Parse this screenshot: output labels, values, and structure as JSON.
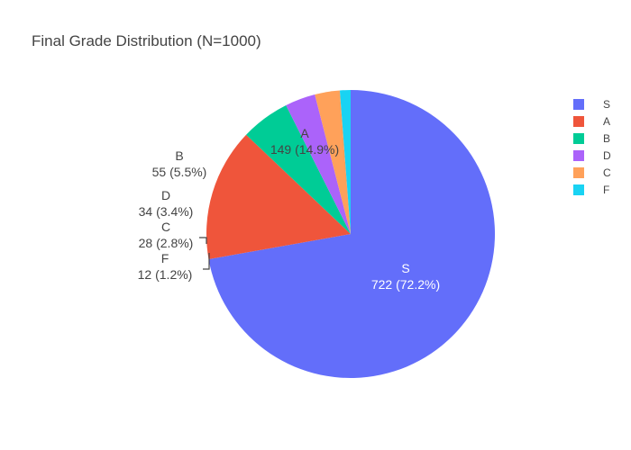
{
  "chart_data": {
    "type": "pie",
    "title": "Final Grade Distribution (N=1000)",
    "slices": [
      {
        "label": "S",
        "value": 722,
        "percent": "72.2%",
        "color": "#636efa",
        "text_color": "#ffffff"
      },
      {
        "label": "A",
        "value": 149,
        "percent": "14.9%",
        "color": "#ef553b",
        "text_color": "#444444"
      },
      {
        "label": "B",
        "value": 55,
        "percent": "5.5%",
        "color": "#00cc96",
        "text_color": "#444444"
      },
      {
        "label": "D",
        "value": 34,
        "percent": "3.4%",
        "color": "#ab63fa",
        "text_color": "#444444"
      },
      {
        "label": "C",
        "value": 28,
        "percent": "2.8%",
        "color": "#ffa15a",
        "text_color": "#444444"
      },
      {
        "label": "F",
        "value": 12,
        "percent": "1.2%",
        "color": "#19d3f3",
        "text_color": "#444444"
      }
    ],
    "legend": [
      "S",
      "A",
      "B",
      "D",
      "C",
      "F"
    ],
    "legend_position": "right"
  }
}
